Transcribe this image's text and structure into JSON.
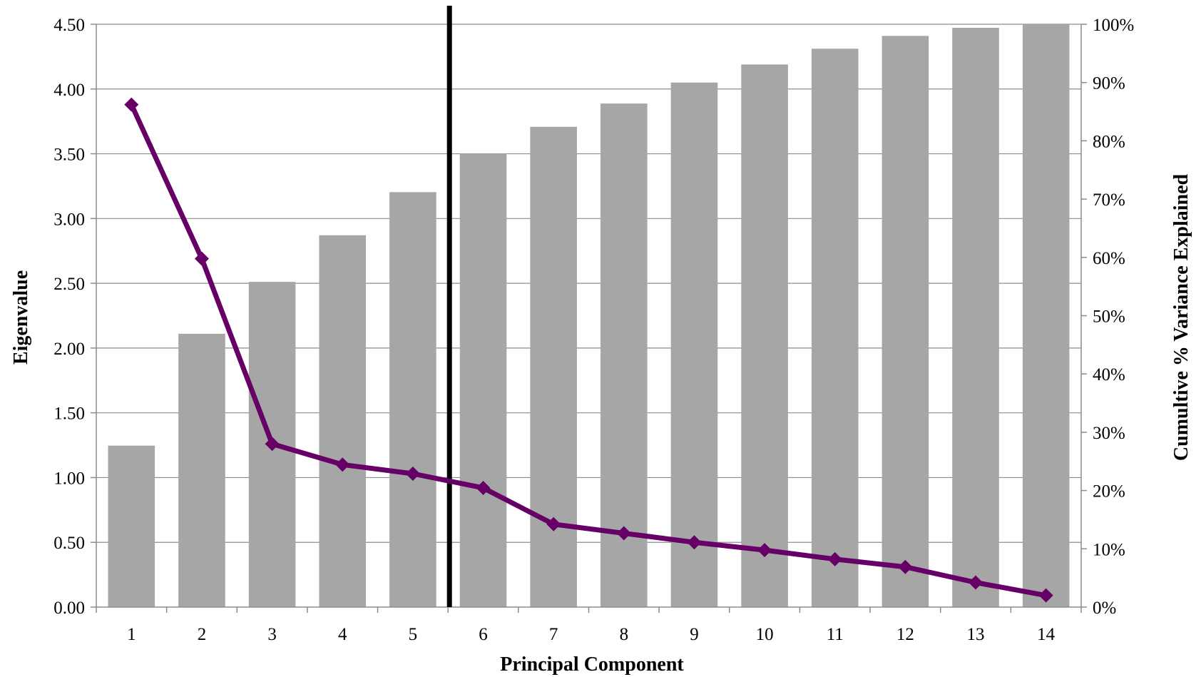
{
  "chart_data": {
    "type": "bar",
    "categories": [
      "1",
      "2",
      "3",
      "4",
      "5",
      "6",
      "7",
      "8",
      "9",
      "10",
      "11",
      "12",
      "13",
      "14"
    ],
    "xlabel": "Principal Component",
    "ylabel": "Eigenvalue",
    "y2label": "Cumultive % Variance Explained",
    "ylim": [
      0,
      4.5
    ],
    "y2lim": [
      0,
      100
    ],
    "yticks": [
      "0.00",
      "0.50",
      "1.00",
      "1.50",
      "2.00",
      "2.50",
      "3.00",
      "3.50",
      "4.00",
      "4.50"
    ],
    "y2ticks": [
      "0%",
      "10%",
      "20%",
      "30%",
      "40%",
      "50%",
      "60%",
      "70%",
      "80%",
      "90%",
      "100%"
    ],
    "grid": true,
    "legend": "none",
    "cutoff_after_component": 5,
    "series": [
      {
        "kind": "bar",
        "axis": "right",
        "color": "#a6a6a6",
        "values": [
          27.7,
          46.9,
          55.8,
          63.8,
          71.2,
          77.8,
          82.4,
          86.4,
          90.0,
          93.1,
          95.8,
          98.0,
          99.4,
          100
        ]
      },
      {
        "kind": "line",
        "axis": "left",
        "color": "#660066",
        "marker": "diamond",
        "values": [
          3.88,
          2.69,
          1.26,
          1.1,
          1.03,
          0.92,
          0.64,
          0.57,
          0.5,
          0.44,
          0.37,
          0.31,
          0.19,
          0.09
        ]
      }
    ]
  }
}
